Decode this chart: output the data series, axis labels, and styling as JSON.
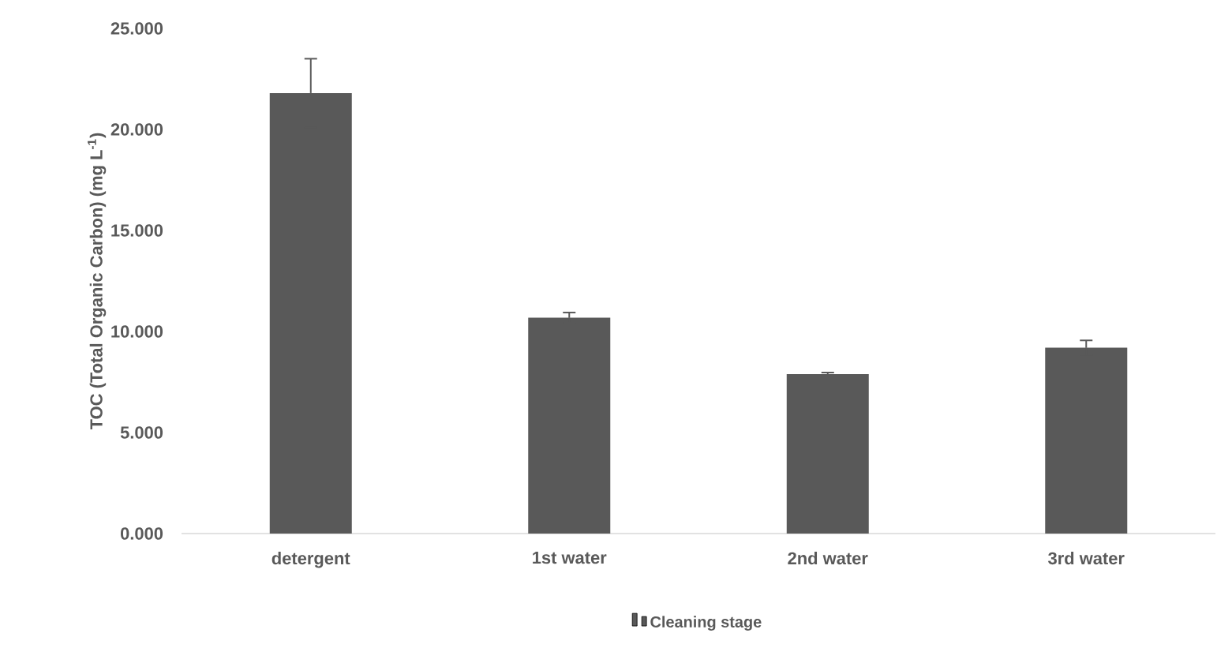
{
  "chart_data": {
    "type": "bar",
    "ylabel": "TOC (Total Organic Carbon) (mg L$^{-1}$)",
    "categories": [
      "detergent",
      "1st water",
      "2nd water",
      "3rd water"
    ],
    "series": [
      {
        "name": "Cleaning stage",
        "color": "#595959",
        "values": [
          21.8,
          10.68,
          7.89,
          9.2
        ],
        "errors": [
          1.7,
          0.26,
          0.08,
          0.36
        ]
      }
    ],
    "ylim": [
      0,
      25
    ],
    "yticks": [
      {
        "value": 0,
        "label": "0.000"
      },
      {
        "value": 5,
        "label": "5.000"
      },
      {
        "value": 10,
        "label": "10.000"
      },
      {
        "value": 15,
        "label": "15.000"
      },
      {
        "value": 20,
        "label": "20.000"
      },
      {
        "value": 25,
        "label": "25.000"
      }
    ],
    "grid": false,
    "legend": "bottom"
  }
}
